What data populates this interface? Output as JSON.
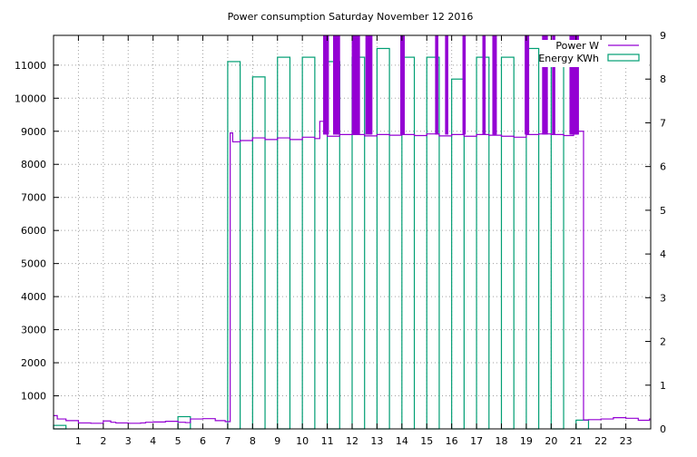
{
  "chart_data": {
    "type": "bar",
    "title": "Power consumption Saturday November 12 2016",
    "xlabel": "",
    "ylabel": "",
    "xlim": [
      0,
      24
    ],
    "ylim_left": [
      0,
      11900
    ],
    "ylim_right": [
      0,
      9
    ],
    "x_ticks": [
      "1",
      "2",
      "3",
      "4",
      "5",
      "6",
      "7",
      "8",
      "9",
      "10",
      "11",
      "12",
      "13",
      "14",
      "15",
      "16",
      "17",
      "18",
      "19",
      "20",
      "21",
      "22",
      "23"
    ],
    "y_left_ticks": [
      "1000",
      "2000",
      "3000",
      "4000",
      "5000",
      "6000",
      "7000",
      "8000",
      "9000",
      "10000",
      "11000"
    ],
    "y_right_ticks": [
      "0",
      "1",
      "2",
      "3",
      "4",
      "5",
      "6",
      "7",
      "8",
      "9"
    ],
    "grid": true,
    "legend_position": "top-right",
    "colors": {
      "power": "#9400d3",
      "energy": "#009e73"
    },
    "series": [
      {
        "name": "Energy KWh",
        "axis": "right",
        "style": "boxes",
        "x": [
          0,
          0.5,
          1,
          1.5,
          2,
          2.5,
          3,
          3.5,
          4,
          4.5,
          5,
          5.5,
          6,
          6.5,
          7,
          7.5,
          8,
          8.5,
          9,
          9.5,
          10,
          10.5,
          11,
          11.5,
          12,
          12.5,
          13,
          13.5,
          14,
          14.5,
          15,
          15.5,
          16,
          16.5,
          17,
          17.5,
          18,
          18.5,
          19,
          19.5,
          20,
          20.5,
          21,
          21.5,
          22,
          22.5,
          23,
          23.5
        ],
        "values": [
          0.08,
          0,
          0,
          0,
          0,
          0,
          0,
          0,
          0,
          0,
          0.28,
          0,
          0,
          0,
          8.4,
          0,
          8.05,
          0,
          8.5,
          0,
          8.5,
          0,
          8.4,
          0,
          8.5,
          0,
          8.7,
          0,
          8.5,
          0,
          8.5,
          0,
          8.0,
          0,
          8.5,
          0,
          8.5,
          0,
          8.7,
          0,
          8.5,
          0,
          0.2,
          0,
          0,
          0,
          0,
          0
        ]
      },
      {
        "name": "Power W",
        "axis": "left",
        "style": "steps",
        "x": [
          0,
          0.15,
          0.5,
          1,
          1.5,
          2,
          2.3,
          2.5,
          3,
          3.5,
          3.7,
          4,
          4.5,
          5,
          5.3,
          5.5,
          6,
          6.5,
          6.9,
          7,
          7.1,
          7.2,
          7.5,
          8,
          8.5,
          9,
          9.5,
          10,
          10.5,
          10.7,
          11,
          11.5,
          12,
          12.5,
          13,
          13.5,
          14,
          14.5,
          15,
          15.5,
          16,
          16.5,
          17,
          17.5,
          18,
          18.5,
          19,
          19.5,
          20,
          20.5,
          20.9,
          21,
          21.3,
          21.5,
          22,
          22.5,
          23,
          23.5,
          23.95
        ],
        "values": [
          400,
          300,
          250,
          180,
          170,
          240,
          200,
          180,
          170,
          180,
          200,
          210,
          230,
          200,
          190,
          300,
          310,
          250,
          220,
          220,
          8950,
          8680,
          8720,
          8800,
          8750,
          8800,
          8750,
          8820,
          8780,
          9300,
          8850,
          8900,
          8900,
          8860,
          8900,
          8880,
          8900,
          8870,
          8920,
          8860,
          8900,
          8850,
          8900,
          8880,
          8850,
          8820,
          8900,
          8920,
          8900,
          8870,
          8950,
          9000,
          270,
          280,
          300,
          340,
          320,
          260,
          300
        ]
      }
    ],
    "spikes": [
      10.9,
      11.0,
      11.3,
      11.4,
      11.45,
      12.05,
      12.1,
      12.2,
      12.25,
      12.6,
      12.7,
      12.75,
      14.0,
      14.05,
      15.4,
      15.8,
      16.5,
      17.3,
      17.7,
      17.75,
      19.0,
      19.05,
      19.7,
      19.8,
      20.1,
      20.8,
      20.85,
      20.9,
      20.95,
      21.0,
      21.05
    ]
  }
}
